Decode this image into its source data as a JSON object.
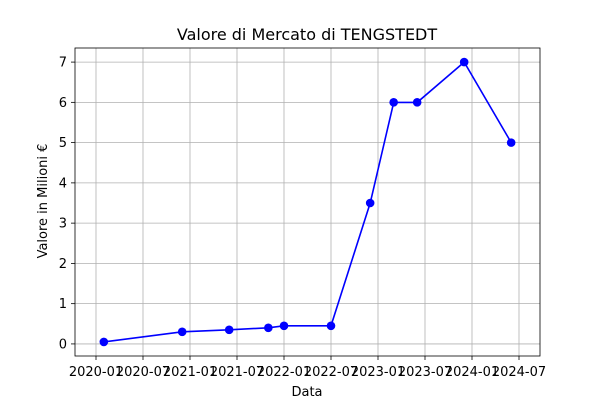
{
  "chart_data": {
    "type": "line",
    "title": "Valore di Mercato di TENGSTEDT",
    "xlabel": "Data",
    "ylabel": "Valore in Milioni €",
    "x_tick_labels": [
      "2020-01",
      "2020-07",
      "2021-01",
      "2021-07",
      "2022-01",
      "2022-07",
      "2023-01",
      "2023-07",
      "2024-01",
      "2024-07"
    ],
    "y_ticks": [
      0,
      1,
      2,
      3,
      4,
      5,
      6,
      7
    ],
    "grid": true,
    "series": [
      {
        "color": "#0000ff",
        "marker": "circle",
        "points": [
          {
            "x": "2020-02",
            "y": 0.05
          },
          {
            "x": "2020-12",
            "y": 0.3
          },
          {
            "x": "2021-06",
            "y": 0.35
          },
          {
            "x": "2021-11",
            "y": 0.4
          },
          {
            "x": "2022-01",
            "y": 0.45
          },
          {
            "x": "2022-07",
            "y": 0.45
          },
          {
            "x": "2022-12",
            "y": 3.5
          },
          {
            "x": "2023-03",
            "y": 6.0
          },
          {
            "x": "2023-06",
            "y": 6.0
          },
          {
            "x": "2023-12",
            "y": 7.0
          },
          {
            "x": "2024-06",
            "y": 5.0
          }
        ]
      }
    ]
  }
}
